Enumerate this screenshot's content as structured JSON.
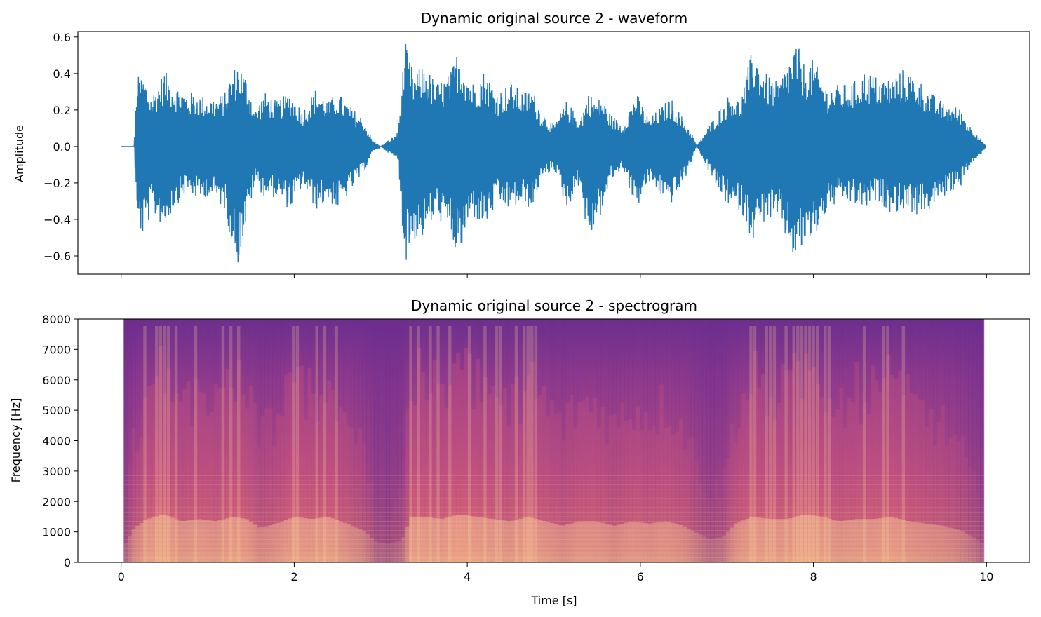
{
  "chart_data": [
    {
      "type": "line",
      "title": "Dynamic original source 2 - waveform",
      "xlabel": "",
      "ylabel": "Amplitude",
      "xlim": [
        -0.5,
        10.5
      ],
      "ylim": [
        -0.7,
        0.63
      ],
      "x_ticks": [
        0,
        2,
        4,
        6,
        8,
        10
      ],
      "x_tick_labels_shown": false,
      "y_ticks": [
        -0.6,
        -0.4,
        -0.2,
        0.0,
        0.2,
        0.4,
        0.6
      ],
      "y_tick_labels": [
        "−0.6",
        "−0.4",
        "−0.2",
        "0.0",
        "0.2",
        "0.4",
        "0.6"
      ],
      "grid": false,
      "color": "#1f77b4",
      "series": [
        {
          "x": [
            0.0,
            0.15,
            0.18,
            0.25,
            0.35,
            0.5,
            0.6,
            0.75,
            0.9,
            1.0,
            1.1,
            1.2,
            1.27,
            1.35,
            1.45,
            1.55,
            1.65,
            1.8,
            1.95,
            2.1,
            2.25,
            2.4,
            2.5,
            2.65,
            2.8,
            2.9,
            3.0,
            3.2,
            3.28,
            3.38,
            3.5,
            3.65,
            3.8,
            3.9,
            4.05,
            4.2,
            4.35,
            4.5,
            4.65,
            4.75,
            4.85,
            5.0,
            5.15,
            5.3,
            5.4,
            5.5,
            5.55,
            5.65,
            5.8,
            5.95,
            6.1,
            6.2,
            6.35,
            6.5,
            6.6,
            6.65,
            6.8,
            6.9,
            7.05,
            7.15,
            7.3,
            7.45,
            7.6,
            7.8,
            7.9,
            8.0,
            8.15,
            8.3,
            8.45,
            8.6,
            8.75,
            8.9,
            9.05,
            9.2,
            9.35,
            9.5,
            9.7,
            9.8,
            9.85,
            10.0
          ],
          "upper": [
            0.0,
            0.0,
            0.38,
            0.4,
            0.28,
            0.42,
            0.35,
            0.3,
            0.29,
            0.27,
            0.27,
            0.3,
            0.4,
            0.47,
            0.38,
            0.2,
            0.3,
            0.25,
            0.3,
            0.2,
            0.32,
            0.25,
            0.3,
            0.22,
            0.15,
            0.04,
            0.0,
            0.08,
            0.58,
            0.4,
            0.45,
            0.35,
            0.4,
            0.55,
            0.35,
            0.42,
            0.3,
            0.35,
            0.3,
            0.32,
            0.2,
            0.12,
            0.25,
            0.15,
            0.3,
            0.25,
            0.28,
            0.18,
            0.12,
            0.3,
            0.15,
            0.2,
            0.27,
            0.15,
            0.07,
            0.0,
            0.12,
            0.2,
            0.3,
            0.25,
            0.55,
            0.4,
            0.35,
            0.58,
            0.45,
            0.48,
            0.33,
            0.34,
            0.35,
            0.42,
            0.38,
            0.38,
            0.43,
            0.38,
            0.3,
            0.24,
            0.21,
            0.12,
            0.1,
            0.0
          ],
          "lower": [
            0.0,
            0.0,
            -0.42,
            -0.5,
            -0.37,
            -0.45,
            -0.35,
            -0.25,
            -0.3,
            -0.27,
            -0.3,
            -0.35,
            -0.52,
            -0.65,
            -0.42,
            -0.2,
            -0.28,
            -0.28,
            -0.35,
            -0.22,
            -0.35,
            -0.3,
            -0.35,
            -0.25,
            -0.15,
            -0.04,
            0.0,
            -0.08,
            -0.65,
            -0.52,
            -0.5,
            -0.38,
            -0.5,
            -0.63,
            -0.38,
            -0.45,
            -0.32,
            -0.35,
            -0.32,
            -0.35,
            -0.2,
            -0.12,
            -0.35,
            -0.2,
            -0.55,
            -0.4,
            -0.38,
            -0.2,
            -0.12,
            -0.35,
            -0.2,
            -0.25,
            -0.32,
            -0.2,
            -0.08,
            0.0,
            -0.15,
            -0.25,
            -0.35,
            -0.35,
            -0.52,
            -0.4,
            -0.42,
            -0.65,
            -0.55,
            -0.52,
            -0.37,
            -0.3,
            -0.32,
            -0.35,
            -0.3,
            -0.37,
            -0.35,
            -0.38,
            -0.35,
            -0.28,
            -0.22,
            -0.12,
            -0.1,
            0.0
          ]
        }
      ]
    },
    {
      "type": "heatmap",
      "title": "Dynamic original source 2 - spectrogram",
      "xlabel": "Time [s]",
      "ylabel": "Frequency [Hz]",
      "xlim": [
        -0.5,
        10.5
      ],
      "ylim": [
        0,
        8000
      ],
      "x_ticks": [
        0,
        2,
        4,
        6,
        8,
        10
      ],
      "x_tick_labels": [
        "0",
        "2",
        "4",
        "6",
        "8",
        "10"
      ],
      "y_ticks": [
        0,
        1000,
        2000,
        3000,
        4000,
        5000,
        6000,
        7000,
        8000
      ],
      "y_tick_labels": [
        "0",
        "1000",
        "2000",
        "3000",
        "4000",
        "5000",
        "6000",
        "7000",
        "8000"
      ],
      "colormap": "magma-like (purple to orange to light yellow)",
      "time_range": [
        0.03,
        9.97
      ],
      "colors": {
        "low": "#6b2d8f",
        "mid": "#d85a7c",
        "high": "#fbd49a"
      },
      "energy_envelope": {
        "x": [
          0.03,
          0.15,
          0.3,
          0.5,
          0.7,
          0.9,
          1.1,
          1.3,
          1.45,
          1.6,
          1.8,
          2.0,
          2.2,
          2.4,
          2.6,
          2.8,
          2.95,
          3.1,
          3.25,
          3.35,
          3.5,
          3.7,
          3.9,
          4.1,
          4.3,
          4.5,
          4.7,
          4.9,
          5.1,
          5.3,
          5.5,
          5.7,
          5.9,
          6.1,
          6.3,
          6.5,
          6.65,
          6.8,
          6.95,
          7.1,
          7.3,
          7.5,
          7.7,
          7.9,
          8.1,
          8.3,
          8.5,
          8.7,
          8.9,
          9.1,
          9.3,
          9.5,
          9.7,
          9.85,
          9.97
        ],
        "level": [
          0.15,
          0.55,
          0.75,
          0.85,
          0.7,
          0.75,
          0.7,
          0.8,
          0.75,
          0.55,
          0.65,
          0.8,
          0.75,
          0.8,
          0.65,
          0.5,
          0.25,
          0.2,
          0.3,
          0.8,
          0.8,
          0.75,
          0.85,
          0.8,
          0.75,
          0.7,
          0.8,
          0.7,
          0.6,
          0.7,
          0.7,
          0.6,
          0.7,
          0.65,
          0.7,
          0.6,
          0.45,
          0.3,
          0.35,
          0.65,
          0.8,
          0.75,
          0.75,
          0.85,
          0.8,
          0.7,
          0.75,
          0.75,
          0.8,
          0.7,
          0.65,
          0.6,
          0.5,
          0.35,
          0.2
        ]
      }
    }
  ]
}
